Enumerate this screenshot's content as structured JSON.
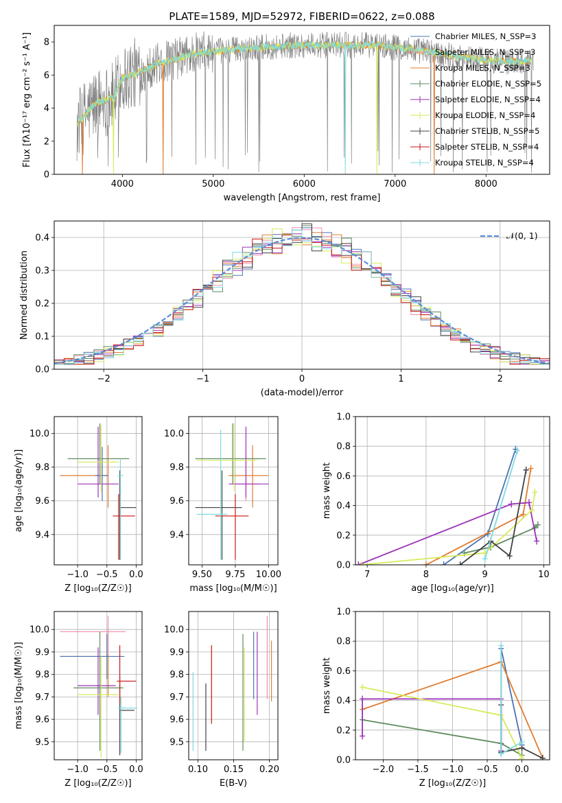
{
  "chart_data": [
    {
      "id": "spectrum",
      "type": "line",
      "title": "PLATE=1589, MJD=52972, FIBERID=0622, z=0.088",
      "xlabel": "wavelength [Angstrom, rest frame]",
      "ylabel": "Flux [fλ10⁻¹⁷ erg cm⁻² s⁻¹ A⁻¹]",
      "xlim": [
        3250,
        8700
      ],
      "ylim": [
        0,
        9
      ],
      "xticks": [
        4000,
        5000,
        6000,
        7000,
        8000
      ],
      "yticks": [
        0,
        2,
        4,
        6,
        8
      ],
      "grid": false,
      "legend_position": "top-right",
      "legend": [
        {
          "label": "Chabrier MILES, N_SSP=3",
          "color": "#4c72b0"
        },
        {
          "label": "Salpeter MILES, N_SSP=3",
          "color": "#f08cb0"
        },
        {
          "label": "Kroupa MILES, N_SSP=3",
          "color": "#e07b2e"
        },
        {
          "label": "Chabrier ELODIE, N_SSP=5",
          "color": "#5e8a5e"
        },
        {
          "label": "Salpeter ELODIE, N_SSP=4",
          "color": "#9b30b8"
        },
        {
          "label": "Kroupa ELODIE, N_SSP=4",
          "color": "#d7ea5a"
        },
        {
          "label": "Chabrier STELIB, N_SSP=5",
          "color": "#404040"
        },
        {
          "label": "Salpeter STELIB, N_SSP=4",
          "color": "#c81414"
        },
        {
          "label": "Kroupa STELIB, N_SSP=4",
          "color": "#7fd9dd"
        }
      ],
      "data_color": "#7f7f7f",
      "model_colors": [
        "#e07b2e",
        "#d7ea5a",
        "#7fd9dd"
      ],
      "continuum_anchors": {
        "wavelength": [
          3500,
          3700,
          3900,
          4000,
          4200,
          4400,
          4600,
          4800,
          5000,
          5300,
          5600,
          5900,
          6200,
          6500,
          6800,
          7100,
          7400,
          7700,
          8000,
          8300,
          8500
        ],
        "flux": [
          3.0,
          4.3,
          4.6,
          5.8,
          6.2,
          6.7,
          7.0,
          7.3,
          7.4,
          7.6,
          7.7,
          7.8,
          7.8,
          7.8,
          7.8,
          7.6,
          7.4,
          7.1,
          6.9,
          6.8,
          6.9
        ]
      },
      "model_dropouts": [
        {
          "series": 0,
          "wavelength": 3560
        },
        {
          "series": 0,
          "wavelength": 4450
        },
        {
          "series": 0,
          "wavelength": 7430
        },
        {
          "series": 1,
          "wavelength": 3900
        },
        {
          "series": 1,
          "wavelength": 6800
        },
        {
          "series": 2,
          "wavelength": 6450
        }
      ]
    },
    {
      "id": "residuals",
      "type": "line",
      "xlabel": "(data-model)/error",
      "ylabel": "Normed distribution",
      "xlim": [
        -2.5,
        2.5
      ],
      "ylim": [
        0,
        0.45
      ],
      "xticks": [
        -2,
        -1,
        0,
        1,
        2
      ],
      "yticks": [
        0,
        0.1,
        0.2,
        0.3,
        0.4
      ],
      "grid": true,
      "legend_position": "top-right",
      "reference": {
        "label": "𝒩(0, 1)",
        "mean": 0,
        "sigma": 1,
        "color": "#5b8bd8"
      },
      "bin_edges_start": -2.5,
      "bin_width": 0.1,
      "histograms": [
        {
          "color": "#4c72b0",
          "offset": 0.3
        },
        {
          "color": "#f08cb0",
          "offset": 1.1
        },
        {
          "color": "#e07b2e",
          "offset": 2.2
        },
        {
          "color": "#5e8a5e",
          "offset": 3.0
        },
        {
          "color": "#9b30b8",
          "offset": 4.4
        },
        {
          "color": "#d7ea5a",
          "offset": 5.1
        },
        {
          "color": "#404040",
          "offset": 6.3
        },
        {
          "color": "#c81414",
          "offset": 7.2
        },
        {
          "color": "#7fd9dd",
          "offset": 8.6
        }
      ]
    },
    {
      "id": "age_vs_Z",
      "type": "scatter",
      "xlabel": "Z [log₁₀(Z/Z☉)]",
      "ylabel": "age  [log₁₀(age/yr)]",
      "xlim": [
        -1.4,
        0.1
      ],
      "ylim": [
        9.22,
        10.1
      ],
      "xticks": [
        -1.0,
        -0.5,
        0.0
      ],
      "xticklabels": [
        "−1.0",
        "−0.5",
        "0.0"
      ],
      "yticks": [
        9.4,
        9.6,
        9.8,
        10.0
      ],
      "grid": true,
      "points": [
        {
          "x": -0.48,
          "xerr": [
            0.82,
            0.0
          ],
          "y": 9.75,
          "yerr": [
            0.19,
            0.18
          ],
          "color": "#e07b2e"
        },
        {
          "x": -0.58,
          "xerr": [
            0.12,
            0.1
          ],
          "y": 9.75,
          "yerr": [
            0.15,
            0.17
          ],
          "color": "#4c72b0"
        },
        {
          "x": -0.62,
          "xerr": [
            0.55,
            0.5
          ],
          "y": 9.85,
          "yerr": [
            0.15,
            0.21
          ],
          "color": "#5e8a5e"
        },
        {
          "x": -0.65,
          "xerr": [
            0.35,
            0.35
          ],
          "y": 9.7,
          "yerr": [
            0.08,
            0.34
          ],
          "color": "#9b30b8"
        },
        {
          "x": -0.6,
          "xerr": [
            0.4,
            0.3
          ],
          "y": 9.83,
          "yerr": [
            0.18,
            0.22
          ],
          "color": "#d7ea5a"
        },
        {
          "x": -0.28,
          "xerr": [
            0.0,
            0.28
          ],
          "y": 9.56,
          "yerr": [
            0.31,
            0.22
          ],
          "color": "#404040"
        },
        {
          "x": -0.3,
          "xerr": [
            0.1,
            0.28
          ],
          "y": 9.51,
          "yerr": [
            0.26,
            0.13
          ],
          "color": "#c81414"
        },
        {
          "x": -0.27,
          "xerr": [
            0.05,
            0.05
          ],
          "y": 9.75,
          "yerr": [
            0.5,
            0.1
          ],
          "color": "#7fd9dd"
        }
      ]
    },
    {
      "id": "age_vs_mass",
      "type": "scatter",
      "xlabel": "mass [log₁₀(M/M☉)]",
      "ylabel": "",
      "xlim": [
        9.4,
        10.07
      ],
      "ylim": [
        9.22,
        10.1
      ],
      "xticks": [
        9.5,
        9.75,
        10.0
      ],
      "xticklabels": [
        "9.50",
        "9.75",
        "10.00"
      ],
      "yticks": [
        9.4,
        9.6,
        9.8,
        10.0
      ],
      "grid": true,
      "points": [
        {
          "x": 9.88,
          "xerr": [
            0.18,
            0.12
          ],
          "y": 9.75,
          "yerr": [
            0.19,
            0.18
          ],
          "color": "#e07b2e"
        },
        {
          "x": 9.83,
          "xerr": [
            0.1,
            0.1
          ],
          "y": 9.7,
          "yerr": [
            0.1,
            0.2
          ],
          "color": "#f08cb0"
        },
        {
          "x": 9.73,
          "xerr": [
            0.28,
            0.25
          ],
          "y": 9.85,
          "yerr": [
            0.15,
            0.21
          ],
          "color": "#5e8a5e"
        },
        {
          "x": 9.83,
          "xerr": [
            0.13,
            0.17
          ],
          "y": 9.7,
          "yerr": [
            0.08,
            0.34
          ],
          "color": "#9b30b8"
        },
        {
          "x": 9.74,
          "xerr": [
            0.28,
            0.17
          ],
          "y": 9.84,
          "yerr": [
            0.18,
            0.22
          ],
          "color": "#d7ea5a"
        },
        {
          "x": 9.65,
          "xerr": [
            0.2,
            0.15
          ],
          "y": 9.56,
          "yerr": [
            0.31,
            0.22
          ],
          "color": "#404040"
        },
        {
          "x": 9.75,
          "xerr": [
            0.15,
            0.1
          ],
          "y": 9.51,
          "yerr": [
            0.26,
            0.13
          ],
          "color": "#c81414"
        },
        {
          "x": 9.64,
          "xerr": [
            0.18,
            0.05
          ],
          "y": 9.52,
          "yerr": [
            0.27,
            0.5
          ],
          "color": "#7fd9dd"
        }
      ]
    },
    {
      "id": "mass_weight_vs_age",
      "type": "line",
      "xlabel": "age  [log₁₀(age/yr)]",
      "ylabel": "mass weight",
      "xlim": [
        6.8,
        10.1
      ],
      "ylim": [
        0,
        1.0
      ],
      "xticks": [
        7,
        8,
        9,
        10
      ],
      "yticks": [
        0.0,
        0.2,
        0.4,
        0.6,
        0.8,
        1.0
      ],
      "grid": true,
      "series": [
        {
          "color": "#4c72b0",
          "x": [
            8.3,
            9.05,
            9.52
          ],
          "y": [
            0.0,
            0.21,
            0.78
          ]
        },
        {
          "color": "#e07b2e",
          "x": [
            8.0,
            9.65,
            9.78
          ],
          "y": [
            0.0,
            0.34,
            0.65
          ]
        },
        {
          "color": "#5e8a5e",
          "x": [
            8.65,
            9.1,
            9.85,
            9.9
          ],
          "y": [
            0.08,
            0.12,
            0.25,
            0.27
          ]
        },
        {
          "color": "#9b30b8",
          "x": [
            6.85,
            9.45,
            9.75,
            9.88
          ],
          "y": [
            0.0,
            0.41,
            0.42,
            0.16
          ]
        },
        {
          "color": "#d7ea5a",
          "x": [
            6.9,
            9.0,
            9.8,
            9.85
          ],
          "y": [
            0.0,
            0.08,
            0.37,
            0.49
          ]
        },
        {
          "color": "#404040",
          "x": [
            8.58,
            9.1,
            9.42,
            9.7
          ],
          "y": [
            0.0,
            0.16,
            0.06,
            0.64
          ]
        },
        {
          "color": "#7fd9dd",
          "x": [
            9.0,
            9.55
          ],
          "y": [
            0.04,
            0.77
          ]
        }
      ]
    },
    {
      "id": "mass_vs_Z",
      "type": "scatter",
      "xlabel": "Z [log₁₀(Z/Z☉)]",
      "ylabel": "mass [log₁₀(M/M☉)]",
      "xlim": [
        -1.4,
        0.1
      ],
      "ylim": [
        9.42,
        10.08
      ],
      "xticks": [
        -1.0,
        -0.5,
        0.0
      ],
      "xticklabels": [
        "−1.0",
        "−0.5",
        "0.0"
      ],
      "yticks": [
        9.5,
        9.6,
        9.7,
        9.8,
        9.9,
        10.0
      ],
      "grid": true,
      "points": [
        {
          "x": -0.48,
          "xerr": [
            0.82,
            0.0
          ],
          "y": 9.88,
          "yerr": [
            0.18,
            0.12
          ],
          "color": "#e07b2e"
        },
        {
          "x": -0.48,
          "xerr": [
            0.82,
            0.3
          ],
          "y": 9.99,
          "yerr": [
            0.1,
            0.07
          ],
          "color": "#f08cb0"
        },
        {
          "x": -0.5,
          "xerr": [
            0.8,
            0.3
          ],
          "y": 9.88,
          "yerr": [
            0.1,
            0.1
          ],
          "color": "#4c72b0"
        },
        {
          "x": -0.62,
          "xerr": [
            0.45,
            0.4
          ],
          "y": 9.74,
          "yerr": [
            0.28,
            0.25
          ],
          "color": "#5e8a5e"
        },
        {
          "x": -0.65,
          "xerr": [
            0.35,
            0.3
          ],
          "y": 9.75,
          "yerr": [
            0.13,
            0.17
          ],
          "color": "#9b30b8"
        },
        {
          "x": -0.6,
          "xerr": [
            0.4,
            0.3
          ],
          "y": 9.71,
          "yerr": [
            0.28,
            0.17
          ],
          "color": "#d7ea5a"
        },
        {
          "x": -0.28,
          "xerr": [
            0.0,
            0.25
          ],
          "y": 9.64,
          "yerr": [
            0.2,
            0.15
          ],
          "color": "#404040"
        },
        {
          "x": -0.28,
          "xerr": [
            0.05,
            0.28
          ],
          "y": 9.77,
          "yerr": [
            0.1,
            0.16
          ],
          "color": "#c81414"
        },
        {
          "x": -0.26,
          "xerr": [
            0.05,
            0.28
          ],
          "y": 9.65,
          "yerr": [
            0.2,
            0.05
          ],
          "color": "#7fd9dd"
        }
      ]
    },
    {
      "id": "mass_vs_ebv",
      "type": "scatter",
      "xlabel": "E(B-V)",
      "ylabel": "",
      "xlim": [
        0.087,
        0.212
      ],
      "ylim": [
        9.42,
        10.08
      ],
      "xticks": [
        0.1,
        0.15,
        0.2
      ],
      "xticklabels": [
        "0.10",
        "0.15",
        "0.20"
      ],
      "yticks": [
        9.5,
        9.6,
        9.7,
        9.8,
        9.9,
        10.0
      ],
      "grid": true,
      "points": [
        {
          "x": 0.093,
          "y": 9.64,
          "yerr": [
            0.18,
            0.17
          ],
          "color": "#7fd9dd"
        },
        {
          "x": 0.111,
          "y": 9.61,
          "yerr": [
            0.15,
            0.15
          ],
          "color": "#404040"
        },
        {
          "x": 0.119,
          "y": 9.75,
          "yerr": [
            0.17,
            0.18
          ],
          "color": "#c81414"
        },
        {
          "x": 0.163,
          "y": 9.72,
          "yerr": [
            0.26,
            0.26
          ],
          "color": "#5e8a5e"
        },
        {
          "x": 0.165,
          "y": 9.71,
          "yerr": [
            0.21,
            0.21
          ],
          "color": "#d7ea5a"
        },
        {
          "x": 0.178,
          "y": 9.84,
          "yerr": [
            0.15,
            0.15
          ],
          "color": "#4c72b0"
        },
        {
          "x": 0.183,
          "y": 9.8,
          "yerr": [
            0.18,
            0.19
          ],
          "color": "#9b30b8"
        },
        {
          "x": 0.197,
          "y": 9.87,
          "yerr": [
            0.18,
            0.19
          ],
          "color": "#f08cb0"
        },
        {
          "x": 0.203,
          "y": 9.82,
          "yerr": [
            0.14,
            0.13
          ],
          "color": "#e07b2e"
        }
      ]
    },
    {
      "id": "mass_weight_vs_Z",
      "type": "line",
      "xlabel": "Z [log₁₀(Z/Z☉)]",
      "ylabel": "mass weight",
      "xlim": [
        -2.4,
        0.4
      ],
      "ylim": [
        0,
        1.0
      ],
      "xticks": [
        -2.0,
        -1.5,
        -1.0,
        -0.5,
        0.0
      ],
      "xticklabels": [
        "−2.0",
        "−1.5",
        "−1.0",
        "−0.5",
        "0.0"
      ],
      "yticks": [
        0.0,
        0.2,
        0.4,
        0.6,
        0.8,
        1.0
      ],
      "grid": true,
      "series": [
        {
          "color": "#4c72b0",
          "x": [
            -0.3,
            -0.3,
            0.0
          ],
          "y": [
            0.05,
            0.75,
            0.1
          ]
        },
        {
          "color": "#e07b2e",
          "x": [
            -2.3,
            -0.3,
            0.3
          ],
          "y": [
            0.34,
            0.66,
            0.01
          ]
        },
        {
          "color": "#5e8a5e",
          "x": [
            -2.3,
            -0.3,
            0.0
          ],
          "y": [
            0.27,
            0.11,
            0.03
          ]
        },
        {
          "color": "#9b30b8",
          "x": [
            -2.3,
            -2.3,
            -0.3,
            -0.3
          ],
          "y": [
            0.16,
            0.41,
            0.41,
            0.06
          ]
        },
        {
          "color": "#d7ea5a",
          "x": [
            -2.3,
            -0.3,
            0.0
          ],
          "y": [
            0.49,
            0.3,
            0.01
          ]
        },
        {
          "color": "#404040",
          "x": [
            -0.3,
            -0.3,
            0.0,
            0.3
          ],
          "y": [
            0.37,
            0.05,
            0.08,
            0.01
          ]
        },
        {
          "color": "#7fd9dd",
          "x": [
            -0.3,
            -0.3,
            0.0
          ],
          "y": [
            0.77,
            0.04,
            0.12
          ]
        }
      ]
    }
  ]
}
